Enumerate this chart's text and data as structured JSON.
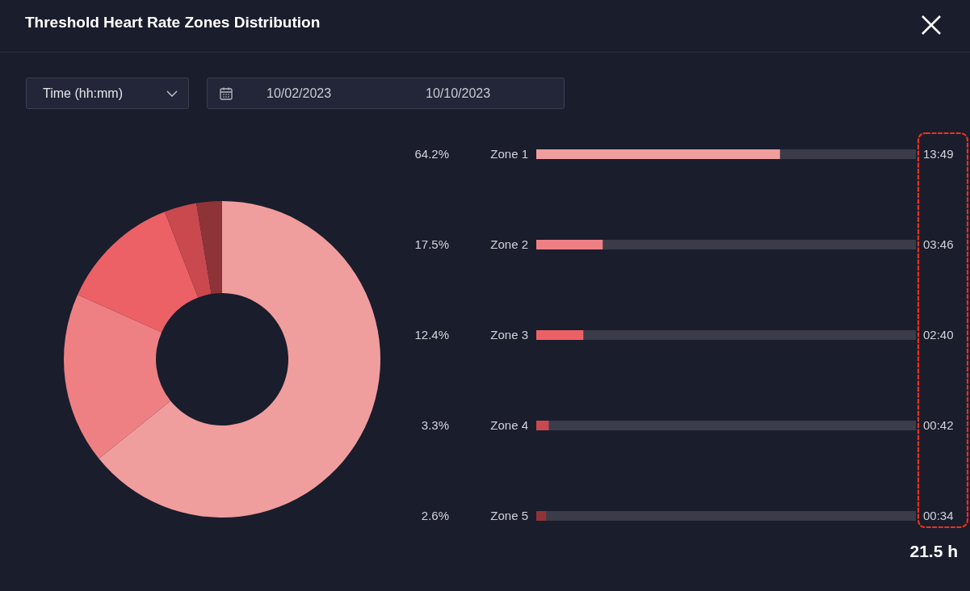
{
  "chart_data": [
    {
      "type": "donut",
      "title": "Threshold Heart Rate Zones Distribution",
      "categories": [
        null,
        null,
        null,
        null,
        null
      ],
      "values": [
        64.2,
        17.5,
        12.4,
        3.3,
        2.6
      ],
      "colors": [
        "#f09d9e",
        "#ee8083",
        "#eb6166",
        "#c9494e",
        "#8e3438"
      ],
      "annotations": [
        "Time (hh:mm)",
        "10/02/2023",
        "10/10/2023"
      ]
    },
    {
      "type": "bar",
      "orientation": "horizontal",
      "categories": [
        "Zone 1",
        "Zone 2",
        "Zone 3",
        "Zone 4",
        "Zone 5"
      ],
      "values": [
        64.2,
        17.5,
        12.4,
        3.3,
        2.6
      ],
      "colors": [
        "#f09d9e",
        "#ee8083",
        "#eb6166",
        "#c9494e",
        "#8e3438"
      ],
      "xlim": [
        0,
        100
      ],
      "tick_labels": false,
      "value_labels": [
        "64.2%",
        "17.5%",
        "12.4%",
        "3.3%",
        "2.6%"
      ],
      "annotations": [
        "13:49",
        "03:46",
        "02:40",
        "00:42",
        "00:34",
        "21.5 h"
      ]
    }
  ]
}
